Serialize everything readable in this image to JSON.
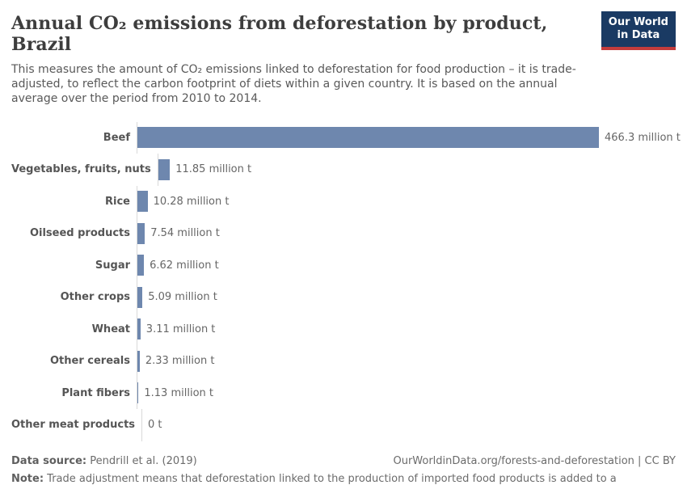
{
  "header": {
    "title": "Annual CO₂ emissions from deforestation by product, Brazil",
    "subtitle": "This measures the amount of CO₂ emissions linked to deforestation for food production – it is trade-adjusted, to reflect the carbon footprint of diets within a given country. It is based on the annual average over the period from 2010 to 2014.",
    "logo": {
      "line1": "Our World",
      "line2": "in Data",
      "background_color": "#1a3a63",
      "accent_color": "#c43c3c"
    }
  },
  "chart_data": {
    "type": "bar",
    "orientation": "horizontal",
    "title": "Annual CO₂ emissions from deforestation by product, Brazil",
    "categories": [
      "Beef",
      "Vegetables, fruits, nuts",
      "Rice",
      "Oilseed products",
      "Sugar",
      "Other crops",
      "Wheat",
      "Other cereals",
      "Plant fibers",
      "Other meat products"
    ],
    "values": [
      466.3,
      11.85,
      10.28,
      7.54,
      6.62,
      5.09,
      3.11,
      2.33,
      1.13,
      0
    ],
    "value_labels": [
      "466.3 million t",
      "11.85 million t",
      "10.28 million t",
      "7.54 million t",
      "6.62 million t",
      "5.09 million t",
      "3.11 million t",
      "2.33 million t",
      "1.13 million t",
      "0 t"
    ],
    "unit": "million t",
    "xlabel": "",
    "ylabel": "",
    "xlim": [
      0,
      466.3
    ],
    "grid": false,
    "legend": "none",
    "bar_color": "#6e87ae",
    "axis_line_color": "#d9d9d9"
  },
  "footer": {
    "datasource_label": "Data source:",
    "datasource_value": " Pendrill et al. (2019)",
    "link": "OurWorldinData.org/forests-and-deforestation | CC BY",
    "note_label": "Note:",
    "note_value": " Trade adjustment means that deforestation linked to the production of imported food products is added to a country's total; exported emissions are subtracted from its total."
  }
}
